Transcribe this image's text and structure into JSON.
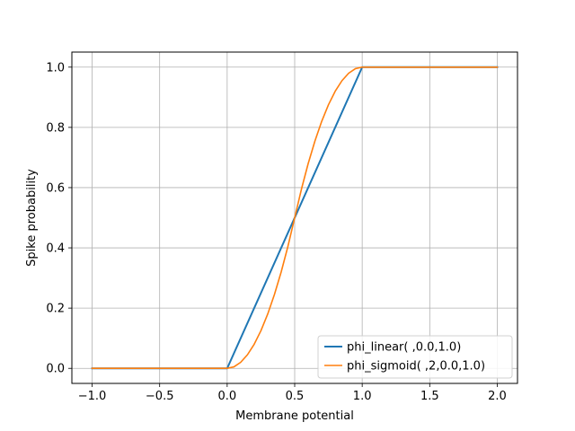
{
  "chart_data": {
    "type": "line",
    "xlabel": "Membrane potential",
    "ylabel": "Spike probability",
    "xlim": [
      -1.15,
      2.15
    ],
    "ylim": [
      -0.05,
      1.05
    ],
    "xticks": [
      -1.0,
      -0.5,
      0.0,
      0.5,
      1.0,
      1.5,
      2.0
    ],
    "xtick_labels": [
      "−1.0",
      "−0.5",
      "0.0",
      "0.5",
      "1.0",
      "1.5",
      "2.0"
    ],
    "yticks": [
      0.0,
      0.2,
      0.4,
      0.6,
      0.8,
      1.0
    ],
    "ytick_labels": [
      "0.0",
      "0.2",
      "0.4",
      "0.6",
      "0.8",
      "1.0"
    ],
    "grid": true,
    "legend_position": "lower right",
    "series": [
      {
        "name": "phi_linear( ,0.0,1.0)",
        "color": "#1f77b4",
        "x": [
          -1.0,
          0.0,
          1.0,
          2.0
        ],
        "y": [
          0.0,
          0.0,
          1.0,
          1.0
        ]
      },
      {
        "name": "phi_sigmoid( ,2,0.0,1.0)",
        "color": "#ff7f0e",
        "x": [
          -1.0,
          0.0,
          0.05,
          0.1,
          0.15,
          0.2,
          0.25,
          0.3,
          0.35,
          0.4,
          0.45,
          0.5,
          0.55,
          0.6,
          0.65,
          0.7,
          0.75,
          0.8,
          0.85,
          0.9,
          0.95,
          1.0,
          2.0
        ],
        "y": [
          0.0,
          0.0,
          0.005,
          0.02,
          0.045,
          0.08,
          0.125,
          0.18,
          0.245,
          0.32,
          0.405,
          0.5,
          0.595,
          0.68,
          0.755,
          0.82,
          0.875,
          0.92,
          0.955,
          0.98,
          0.995,
          1.0,
          1.0
        ]
      }
    ]
  }
}
